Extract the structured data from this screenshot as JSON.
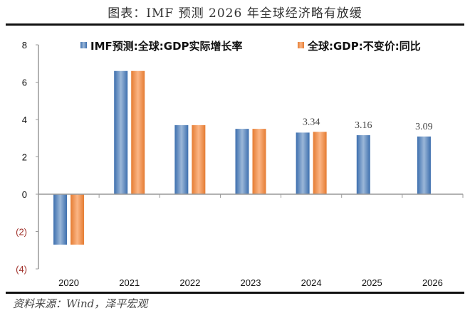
{
  "header": {
    "title": "图表：IMF 预测 2026 年全球经济略有放缓"
  },
  "footer": {
    "source": "资料来源：Wind，泽平宏观"
  },
  "chart_data": {
    "type": "bar",
    "title": "图表：IMF 预测 2026 年全球经济略有放缓",
    "xlabel": "",
    "ylabel": "",
    "categories": [
      "2020",
      "2021",
      "2022",
      "2023",
      "2024",
      "2025",
      "2026"
    ],
    "series": [
      {
        "name": "IMF预测:全球:GDP实际增长率",
        "color": "#4a7ebb",
        "values": [
          -2.7,
          6.6,
          3.7,
          3.5,
          3.3,
          3.16,
          3.09
        ]
      },
      {
        "name": "全球:GDP:不变价:同比",
        "color": "#f0914a",
        "values": [
          -2.7,
          6.6,
          3.7,
          3.5,
          3.34,
          null,
          null
        ]
      }
    ],
    "data_labels": [
      {
        "category": "2024",
        "series": 1,
        "text": "3.34"
      },
      {
        "category": "2025",
        "series": 0,
        "text": "3.16"
      },
      {
        "category": "2026",
        "series": 0,
        "text": "3.09"
      }
    ],
    "ylim": [
      -4,
      8
    ],
    "yticks": [
      8,
      6,
      4,
      2,
      0,
      -2,
      -4
    ],
    "ytick_labels": [
      "8",
      "6",
      "4",
      "2",
      "0",
      "(2)",
      "(4)"
    ],
    "negative_label_color": "#a0302a",
    "grid": false,
    "legend": "top-center"
  }
}
